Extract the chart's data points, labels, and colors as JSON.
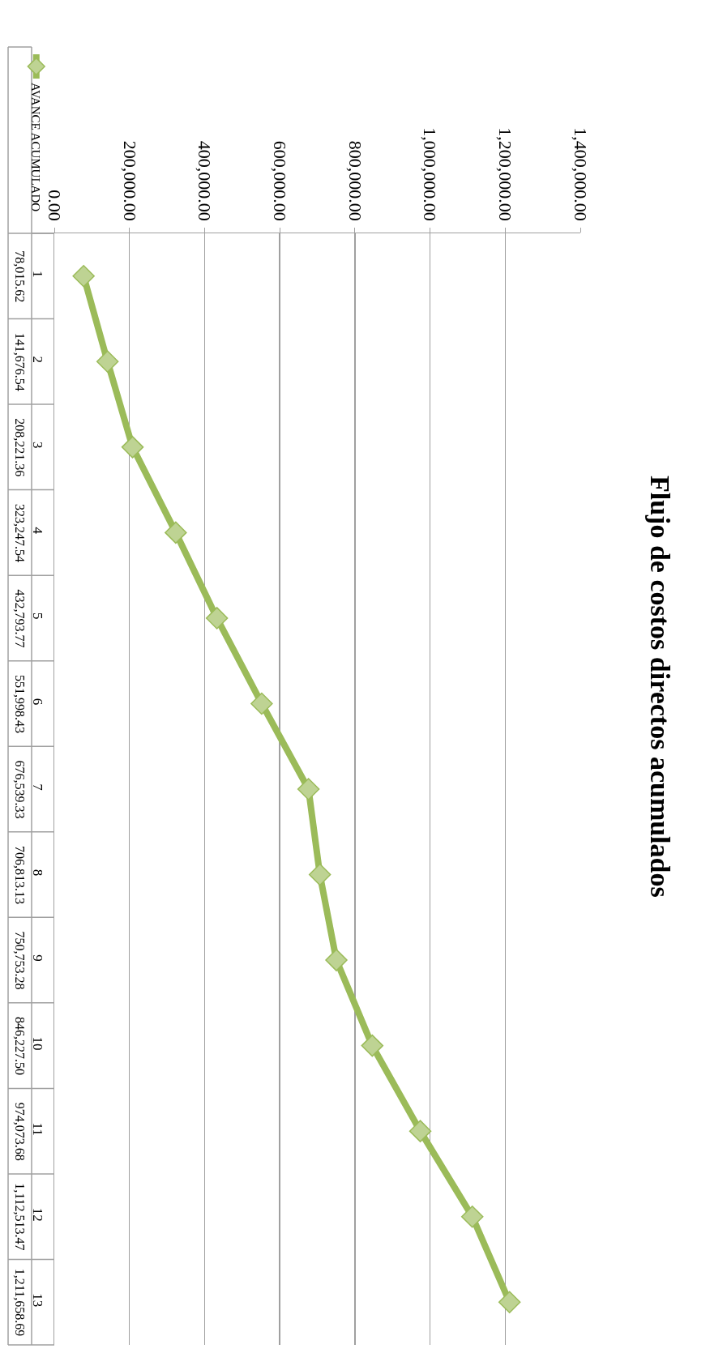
{
  "chart_data": {
    "type": "line",
    "title": "Flujo de costos directos acumulados",
    "orientation": "horizontal",
    "categories": [
      "1",
      "2",
      "3",
      "4",
      "5",
      "6",
      "7",
      "8",
      "9",
      "10",
      "11",
      "12",
      "13"
    ],
    "series": [
      {
        "name": "AVANCE ACUMULADO",
        "color": "#9bbb59",
        "values": [
          78015.62,
          141676.54,
          208221.36,
          323247.54,
          432793.77,
          551998.43,
          676539.33,
          706813.13,
          750753.28,
          846227.5,
          974073.68,
          1112513.47,
          1211658.69
        ],
        "value_labels": [
          "78,015.62",
          "141,676.54",
          "208,221.36",
          "323,247.54",
          "432,793.77",
          "551,998.43",
          "676,539.33",
          "706,813.13",
          "750,753.28",
          "846,227.50",
          "974,073.68",
          "1,112,513.47",
          "1,211,658.69"
        ]
      }
    ],
    "xlim": [
      0,
      1400000
    ],
    "xticks": [
      {
        "value": 0,
        "label": "0.00"
      },
      {
        "value": 200000,
        "label": "200,000.00"
      },
      {
        "value": 400000,
        "label": "400,000.00"
      },
      {
        "value": 600000,
        "label": "600,000.00"
      },
      {
        "value": 800000,
        "label": "800,000.00"
      },
      {
        "value": 1000000,
        "label": "1,000,000.00"
      },
      {
        "value": 1200000,
        "label": "1,200,000.00"
      },
      {
        "value": 1400000,
        "label": "1,400,000.00"
      }
    ],
    "grid": "x",
    "legend": "top left",
    "marker": "diamond",
    "line_style": "solid"
  }
}
